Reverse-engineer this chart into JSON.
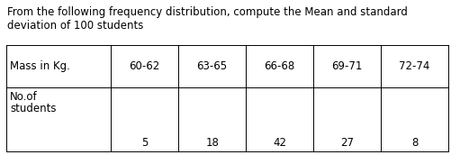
{
  "title_line1": "From the following frequency distribution, compute the Mean and standard",
  "title_line2": "deviation of 100 students",
  "col_headers": [
    "Mass in Kg.",
    "60-62",
    "63-65",
    "66-68",
    "69-71",
    "72-74"
  ],
  "row1_label_line1": "No.of",
  "row1_label_line2": "students",
  "row1_values": [
    "5",
    "18",
    "42",
    "27",
    "8"
  ],
  "bg_color": "#ffffff",
  "border_color": "#000000",
  "text_color": "#000000",
  "font_size": 8.5,
  "title_font_size": 8.5,
  "fig_width": 5.02,
  "fig_height": 1.72,
  "dpi": 100
}
